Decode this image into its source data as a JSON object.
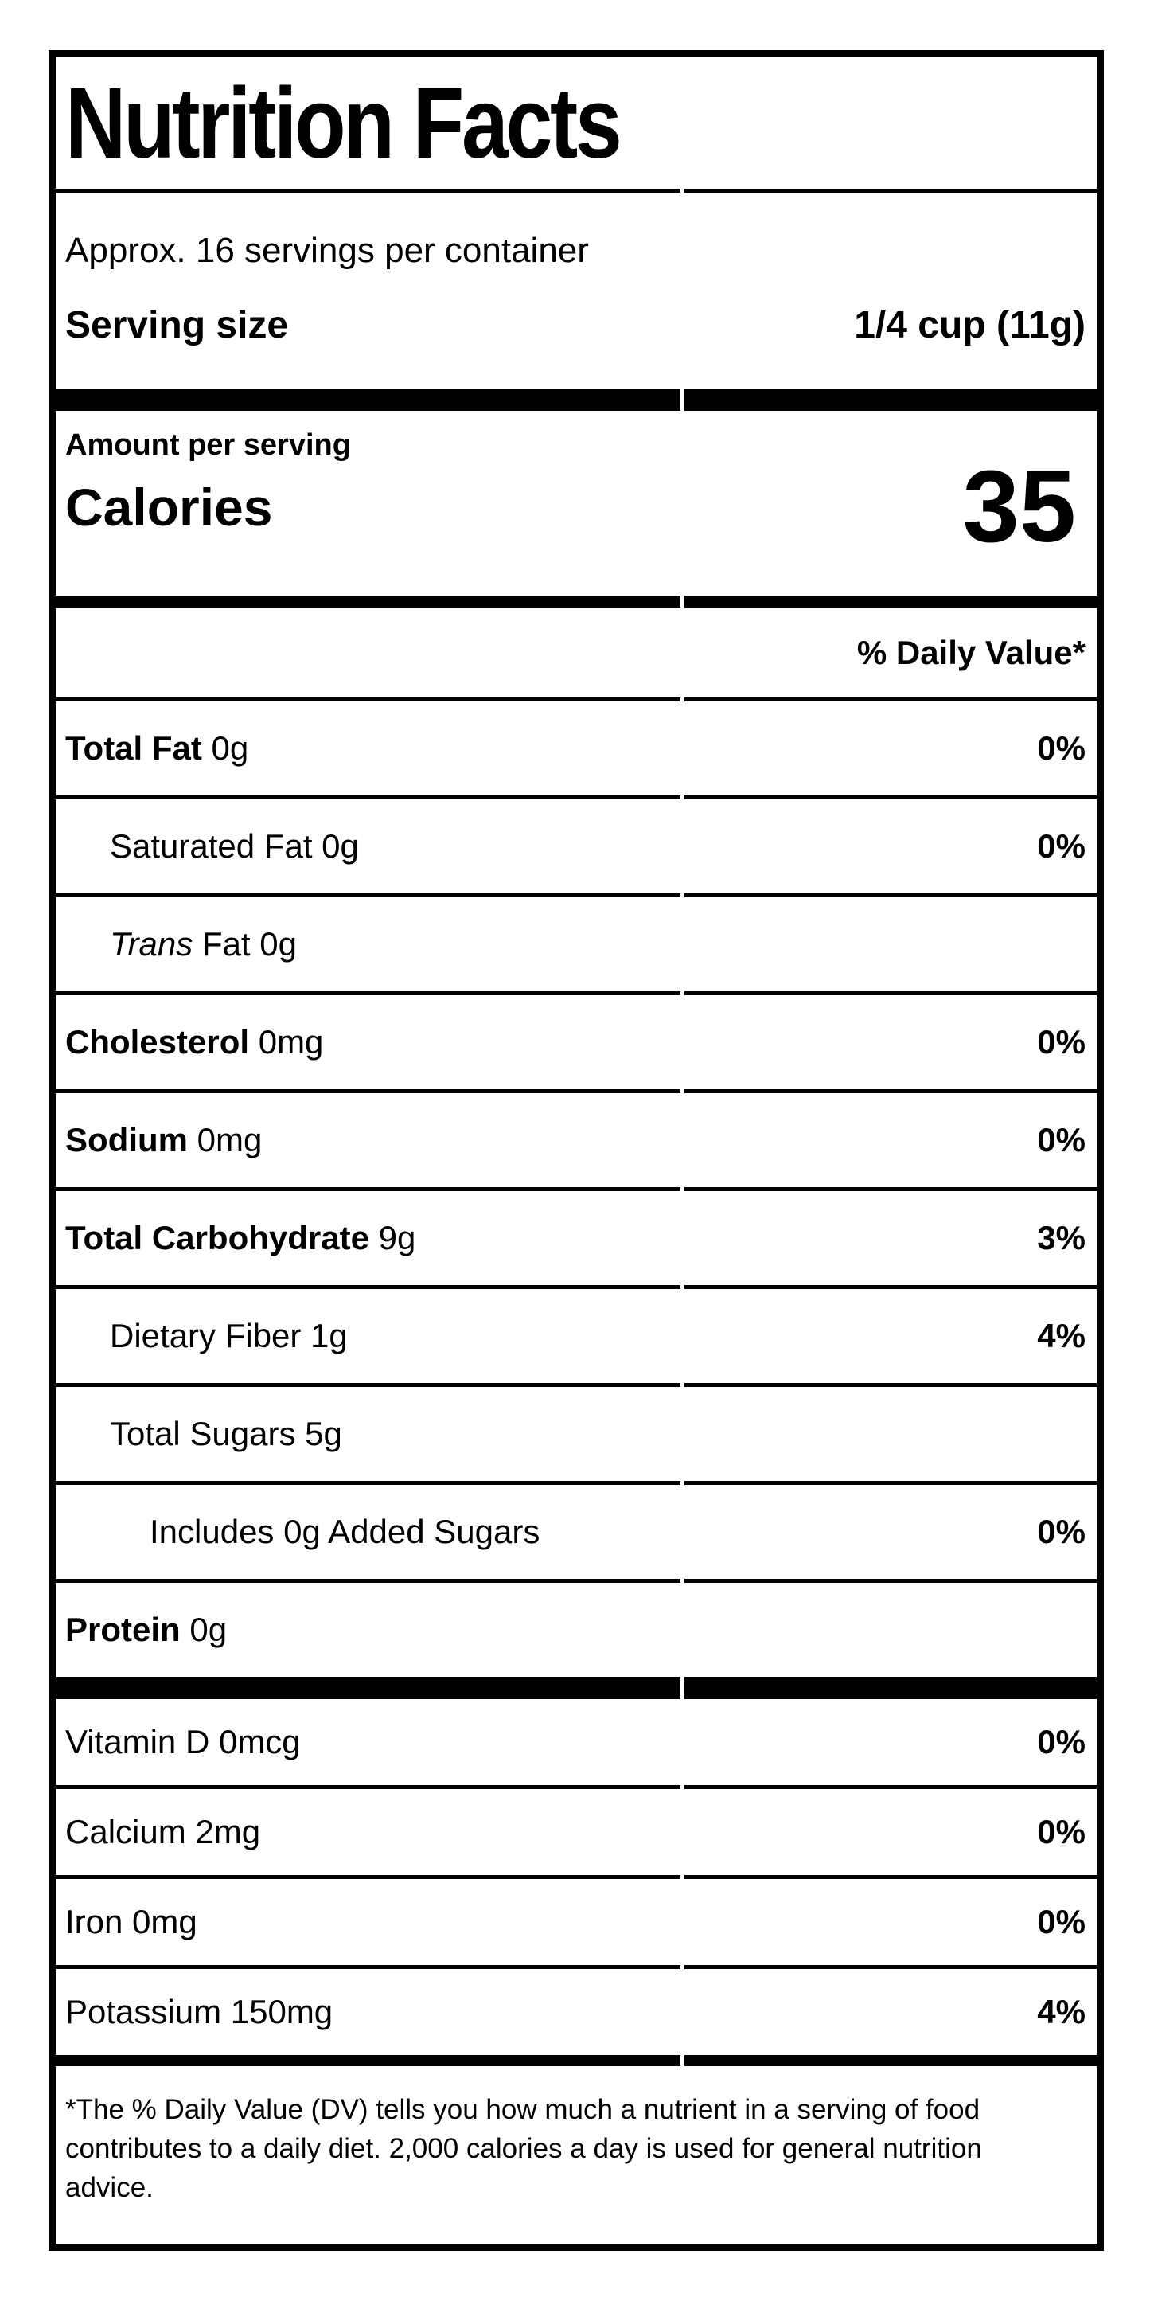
{
  "title": "Nutrition Facts",
  "servings_per_container": "Approx. 16 servings per container",
  "serving_size": {
    "label": "Serving size",
    "value": "1/4 cup (11g)"
  },
  "calories": {
    "amount_label": "Amount per serving",
    "label": "Calories",
    "value": "35"
  },
  "daily_value_header": "% Daily Value*",
  "rows": [
    {
      "bold": "Total Fat",
      "italic": "",
      "text": " 0g",
      "percent": "0%"
    },
    {
      "bold": "",
      "italic": "",
      "text": "Saturated Fat 0g",
      "percent": "0%"
    },
    {
      "bold": "",
      "italic": "Trans",
      "text": " Fat 0g",
      "percent": ""
    },
    {
      "bold": "Cholesterol",
      "italic": "",
      "text": " 0mg",
      "percent": "0%"
    },
    {
      "bold": "Sodium",
      "italic": "",
      "text": " 0mg",
      "percent": "0%"
    },
    {
      "bold": "Total Carbohydrate",
      "italic": "",
      "text": " 9g",
      "percent": "3%"
    },
    {
      "bold": "",
      "italic": "",
      "text": "Dietary Fiber 1g",
      "percent": "4%"
    },
    {
      "bold": "",
      "italic": "",
      "text": "Total Sugars 5g",
      "percent": ""
    },
    {
      "bold": "",
      "italic": "",
      "text": "Includes 0g Added Sugars",
      "percent": "0%"
    },
    {
      "bold": "Protein",
      "italic": "",
      "text": " 0g",
      "percent": ""
    }
  ],
  "micronutrients": [
    {
      "text": "Vitamin D 0mcg",
      "percent": "0%"
    },
    {
      "text": "Calcium 2mg",
      "percent": "0%"
    },
    {
      "text": "Iron 0mg",
      "percent": "0%"
    },
    {
      "text": "Potassium 150mg",
      "percent": "4%"
    }
  ],
  "footnote": "*The % Daily Value (DV) tells you how much a nutrient in a serving of food contributes to a daily diet. 2,000 calories a day is used for general nutrition advice.",
  "colors": {
    "ink": "#000000",
    "paper": "#ffffff"
  }
}
